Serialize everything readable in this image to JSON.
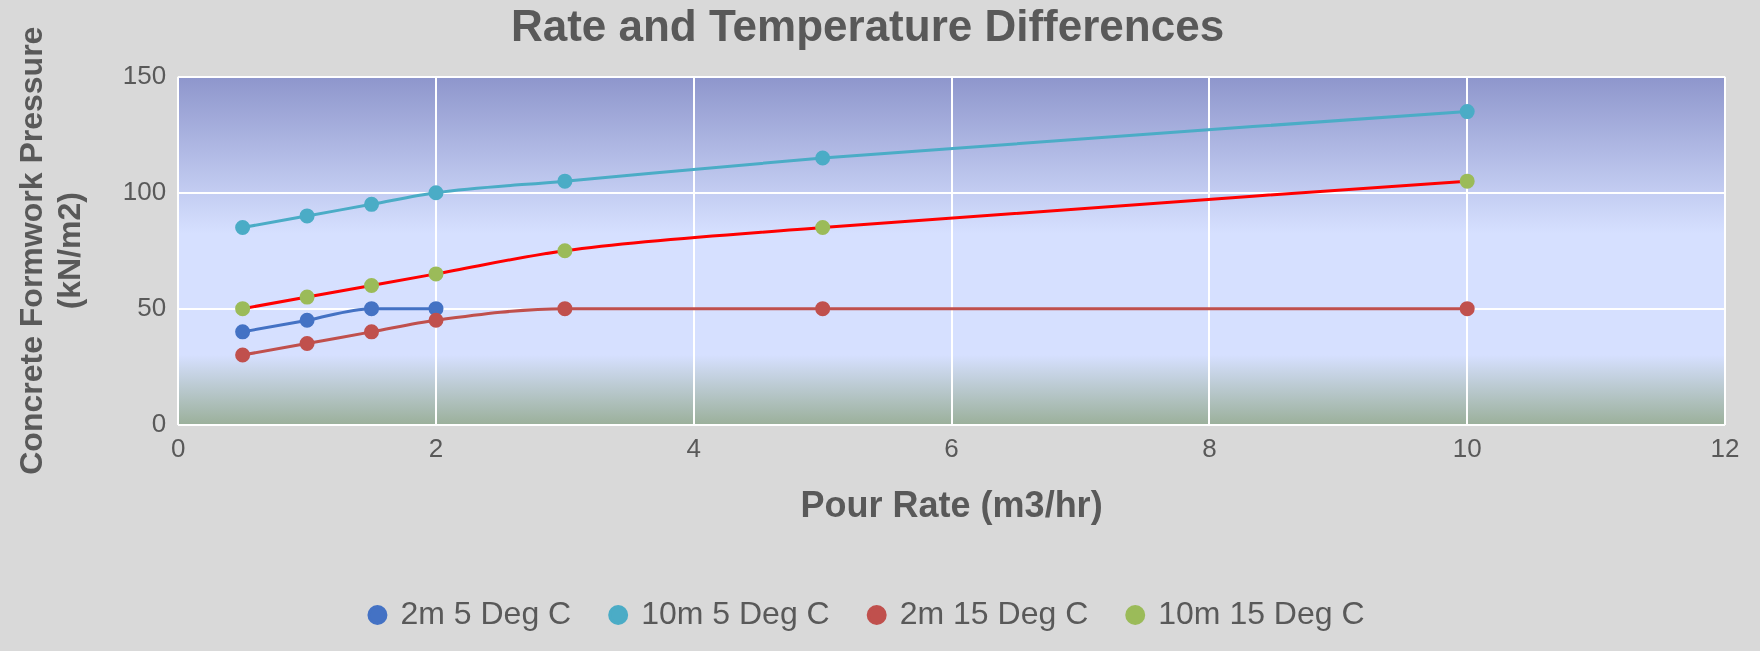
{
  "chart_data": {
    "type": "line",
    "title": "Rate and Temperature Differences",
    "xlabel": "Pour Rate (m3/hr)",
    "ylabel": "Concrete Formwork Pressure (kN/m2)",
    "x": [
      0.5,
      1,
      1.5,
      2,
      3,
      5,
      10
    ],
    "series": [
      {
        "name": "2m 5 Deg C",
        "color": "#4472c4",
        "values": [
          40,
          45,
          50,
          50,
          null,
          null,
          null
        ]
      },
      {
        "name": "10m 5 Deg C",
        "color": "#4bacc6",
        "values": [
          85,
          90,
          95,
          100,
          105,
          115,
          135
        ]
      },
      {
        "name": "2m 15 Deg C",
        "color": "#c0504d",
        "values": [
          30,
          35,
          40,
          45,
          50,
          50,
          50
        ]
      },
      {
        "name": "10m 15 Deg C",
        "color": "#ff0000",
        "colors": [
          "#9bbb59",
          "#9bbb59",
          "#9bbb59",
          "#9bbb59",
          "#9bbb59",
          "#9bbb59",
          "#9bbb59"
        ],
        "values": [
          50,
          55,
          60,
          65,
          75,
          85,
          105
        ]
      }
    ],
    "xlim": [
      0,
      12
    ],
    "xticks": [
      0,
      2,
      4,
      6,
      8,
      10,
      12
    ],
    "ylim": [
      0,
      150
    ],
    "yticks": [
      0,
      50,
      100,
      150
    ],
    "grid": true,
    "legend": "bottom",
    "marker": "circle",
    "line_style": "solid"
  }
}
